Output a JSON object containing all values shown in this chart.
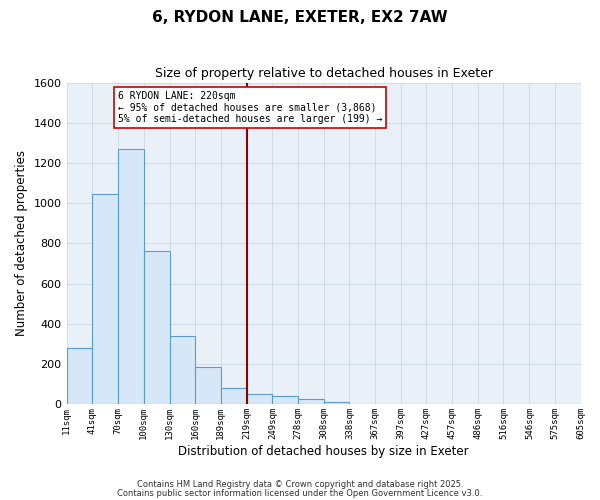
{
  "title": "6, RYDON LANE, EXETER, EX2 7AW",
  "subtitle": "Size of property relative to detached houses in Exeter",
  "xlabel": "Distribution of detached houses by size in Exeter",
  "ylabel": "Number of detached properties",
  "bin_edges": [
    11,
    41,
    70,
    100,
    130,
    160,
    189,
    219,
    249,
    278,
    308,
    338,
    367,
    397,
    427,
    457,
    486,
    516,
    546,
    575,
    605
  ],
  "bin_labels": [
    "11sqm",
    "41sqm",
    "70sqm",
    "100sqm",
    "130sqm",
    "160sqm",
    "189sqm",
    "219sqm",
    "249sqm",
    "278sqm",
    "308sqm",
    "338sqm",
    "367sqm",
    "397sqm",
    "427sqm",
    "457sqm",
    "486sqm",
    "516sqm",
    "546sqm",
    "575sqm",
    "605sqm"
  ],
  "counts": [
    280,
    1045,
    1270,
    765,
    340,
    185,
    80,
    50,
    38,
    25,
    10,
    0,
    0,
    0,
    0,
    0,
    0,
    0,
    0,
    0
  ],
  "bar_facecolor": "#d6e8f7",
  "bar_edgecolor": "#5b9bd5",
  "vline_x": 219,
  "vline_color": "#8b0000",
  "annotation_line1": "6 RYDON LANE: 220sqm",
  "annotation_line2": "← 95% of detached houses are smaller (3,868)",
  "annotation_line3": "5% of semi-detached houses are larger (199) →",
  "annotation_box_facecolor": "#ffffff",
  "annotation_box_edgecolor": "#cc0000",
  "ylim": [
    0,
    1600
  ],
  "yticks": [
    0,
    200,
    400,
    600,
    800,
    1000,
    1200,
    1400,
    1600
  ],
  "grid_color": "#c8d8e8",
  "plot_bg_color": "#eaf0f8",
  "fig_bg_color": "#ffffff",
  "footer_line1": "Contains HM Land Registry data © Crown copyright and database right 2025.",
  "footer_line2": "Contains public sector information licensed under the Open Government Licence v3.0."
}
